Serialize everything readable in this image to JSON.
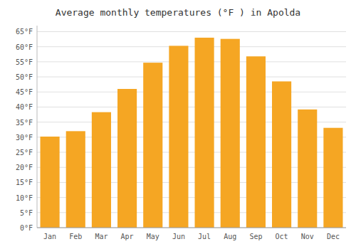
{
  "chart_data": {
    "type": "bar",
    "title": "Average monthly temperatures (°F ) in Apolda",
    "categories": [
      "Jan",
      "Feb",
      "Mar",
      "Apr",
      "May",
      "Jun",
      "Jul",
      "Aug",
      "Sep",
      "Oct",
      "Nov",
      "Dec"
    ],
    "values": [
      30.2,
      32.0,
      38.3,
      46.0,
      54.7,
      60.3,
      63.0,
      62.6,
      56.8,
      48.5,
      39.2,
      33.1
    ],
    "color": "#F5A623",
    "ylim": [
      0,
      67
    ],
    "yticks": [
      {
        "value": 0,
        "label": "0°F"
      },
      {
        "value": 5,
        "label": "5°F"
      },
      {
        "value": 10,
        "label": "10°F"
      },
      {
        "value": 15,
        "label": "15°F"
      },
      {
        "value": 20,
        "label": "20°F"
      },
      {
        "value": 25,
        "label": "25°F"
      },
      {
        "value": 30,
        "label": "30°F"
      },
      {
        "value": 35,
        "label": "35°F"
      },
      {
        "value": 40,
        "label": "40°F"
      },
      {
        "value": 45,
        "label": "45°F"
      },
      {
        "value": 50,
        "label": "50°F"
      },
      {
        "value": 55,
        "label": "55°F"
      },
      {
        "value": 60,
        "label": "60°F"
      },
      {
        "value": 65,
        "label": "65°F"
      }
    ],
    "grid": true
  }
}
